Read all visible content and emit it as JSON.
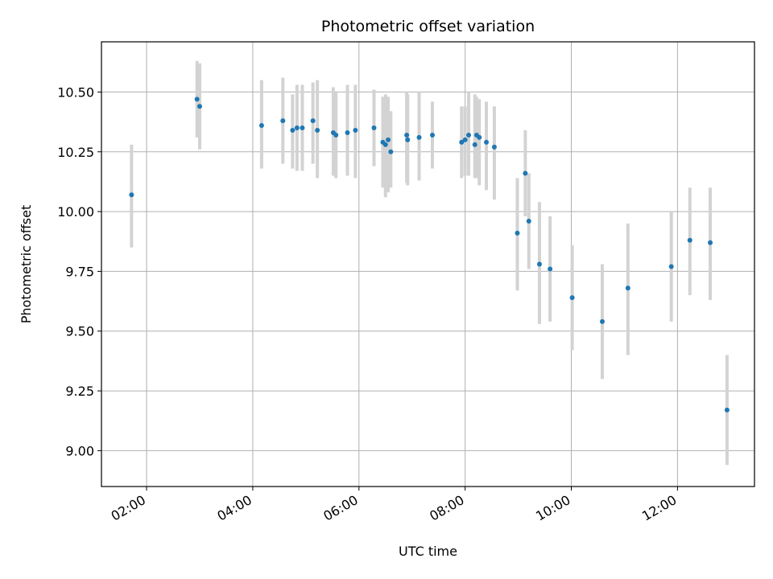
{
  "chart_data": {
    "type": "scatter",
    "title": "Photometric offset variation",
    "xlabel": "UTC time",
    "ylabel": "Photometric offset",
    "grid": true,
    "x_ticks": [
      "02:00",
      "04:00",
      "06:00",
      "08:00",
      "10:00",
      "12:00"
    ],
    "y_ticks": [
      "9.00",
      "9.25",
      "9.50",
      "9.75",
      "10.00",
      "10.25",
      "10.50"
    ],
    "xlim": [
      "01:09",
      "13:27"
    ],
    "ylim": [
      8.85,
      10.71
    ],
    "colors": {
      "point": "#1f77b4",
      "errorbar": "#d3d3d3",
      "grid": "#b0b0b0"
    },
    "series": [
      {
        "x": [
          "01:43",
          "02:57",
          "03:00",
          "04:10",
          "04:34",
          "04:45",
          "04:50",
          "04:56",
          "05:08",
          "05:13",
          "05:31",
          "05:34",
          "05:47",
          "05:56",
          "06:17",
          "06:27",
          "06:30",
          "06:33",
          "06:36",
          "06:54",
          "06:55",
          "07:08",
          "07:23",
          "07:56",
          "08:00",
          "08:04",
          "08:11",
          "08:13",
          "08:16",
          "08:24",
          "08:33",
          "08:59",
          "09:08",
          "09:12",
          "09:24",
          "09:36",
          "10:01",
          "10:35",
          "11:04",
          "11:53",
          "12:14",
          "12:37",
          "12:56"
        ],
        "y": [
          10.07,
          10.47,
          10.44,
          10.36,
          10.38,
          10.34,
          10.35,
          10.35,
          10.38,
          10.34,
          10.33,
          10.32,
          10.33,
          10.34,
          10.35,
          10.29,
          10.28,
          10.3,
          10.25,
          10.32,
          10.3,
          10.31,
          10.32,
          10.29,
          10.3,
          10.32,
          10.28,
          10.32,
          10.31,
          10.29,
          10.27,
          9.91,
          10.16,
          9.96,
          9.78,
          9.76,
          9.64,
          9.54,
          9.68,
          9.77,
          9.88,
          9.87,
          9.17
        ],
        "err_low": [
          9.85,
          10.31,
          10.26,
          10.18,
          10.2,
          10.18,
          10.17,
          10.17,
          10.2,
          10.14,
          10.15,
          10.14,
          10.15,
          10.14,
          10.19,
          10.1,
          10.06,
          10.08,
          10.1,
          10.12,
          10.11,
          10.13,
          10.18,
          10.14,
          10.15,
          10.15,
          10.14,
          10.14,
          10.11,
          10.09,
          10.05,
          9.67,
          9.98,
          9.76,
          9.53,
          9.54,
          9.42,
          9.3,
          9.4,
          9.54,
          9.65,
          9.63,
          8.94
        ],
        "err_high": [
          10.28,
          10.63,
          10.62,
          10.55,
          10.56,
          10.49,
          10.53,
          10.53,
          10.54,
          10.55,
          10.52,
          10.5,
          10.53,
          10.53,
          10.51,
          10.48,
          10.49,
          10.48,
          10.42,
          10.5,
          10.49,
          10.5,
          10.46,
          10.44,
          10.44,
          10.5,
          10.49,
          10.48,
          10.47,
          10.46,
          10.44,
          10.14,
          10.34,
          10.16,
          10.04,
          9.98,
          9.86,
          9.78,
          9.95,
          10.0,
          10.1,
          10.1,
          9.4
        ]
      }
    ]
  }
}
